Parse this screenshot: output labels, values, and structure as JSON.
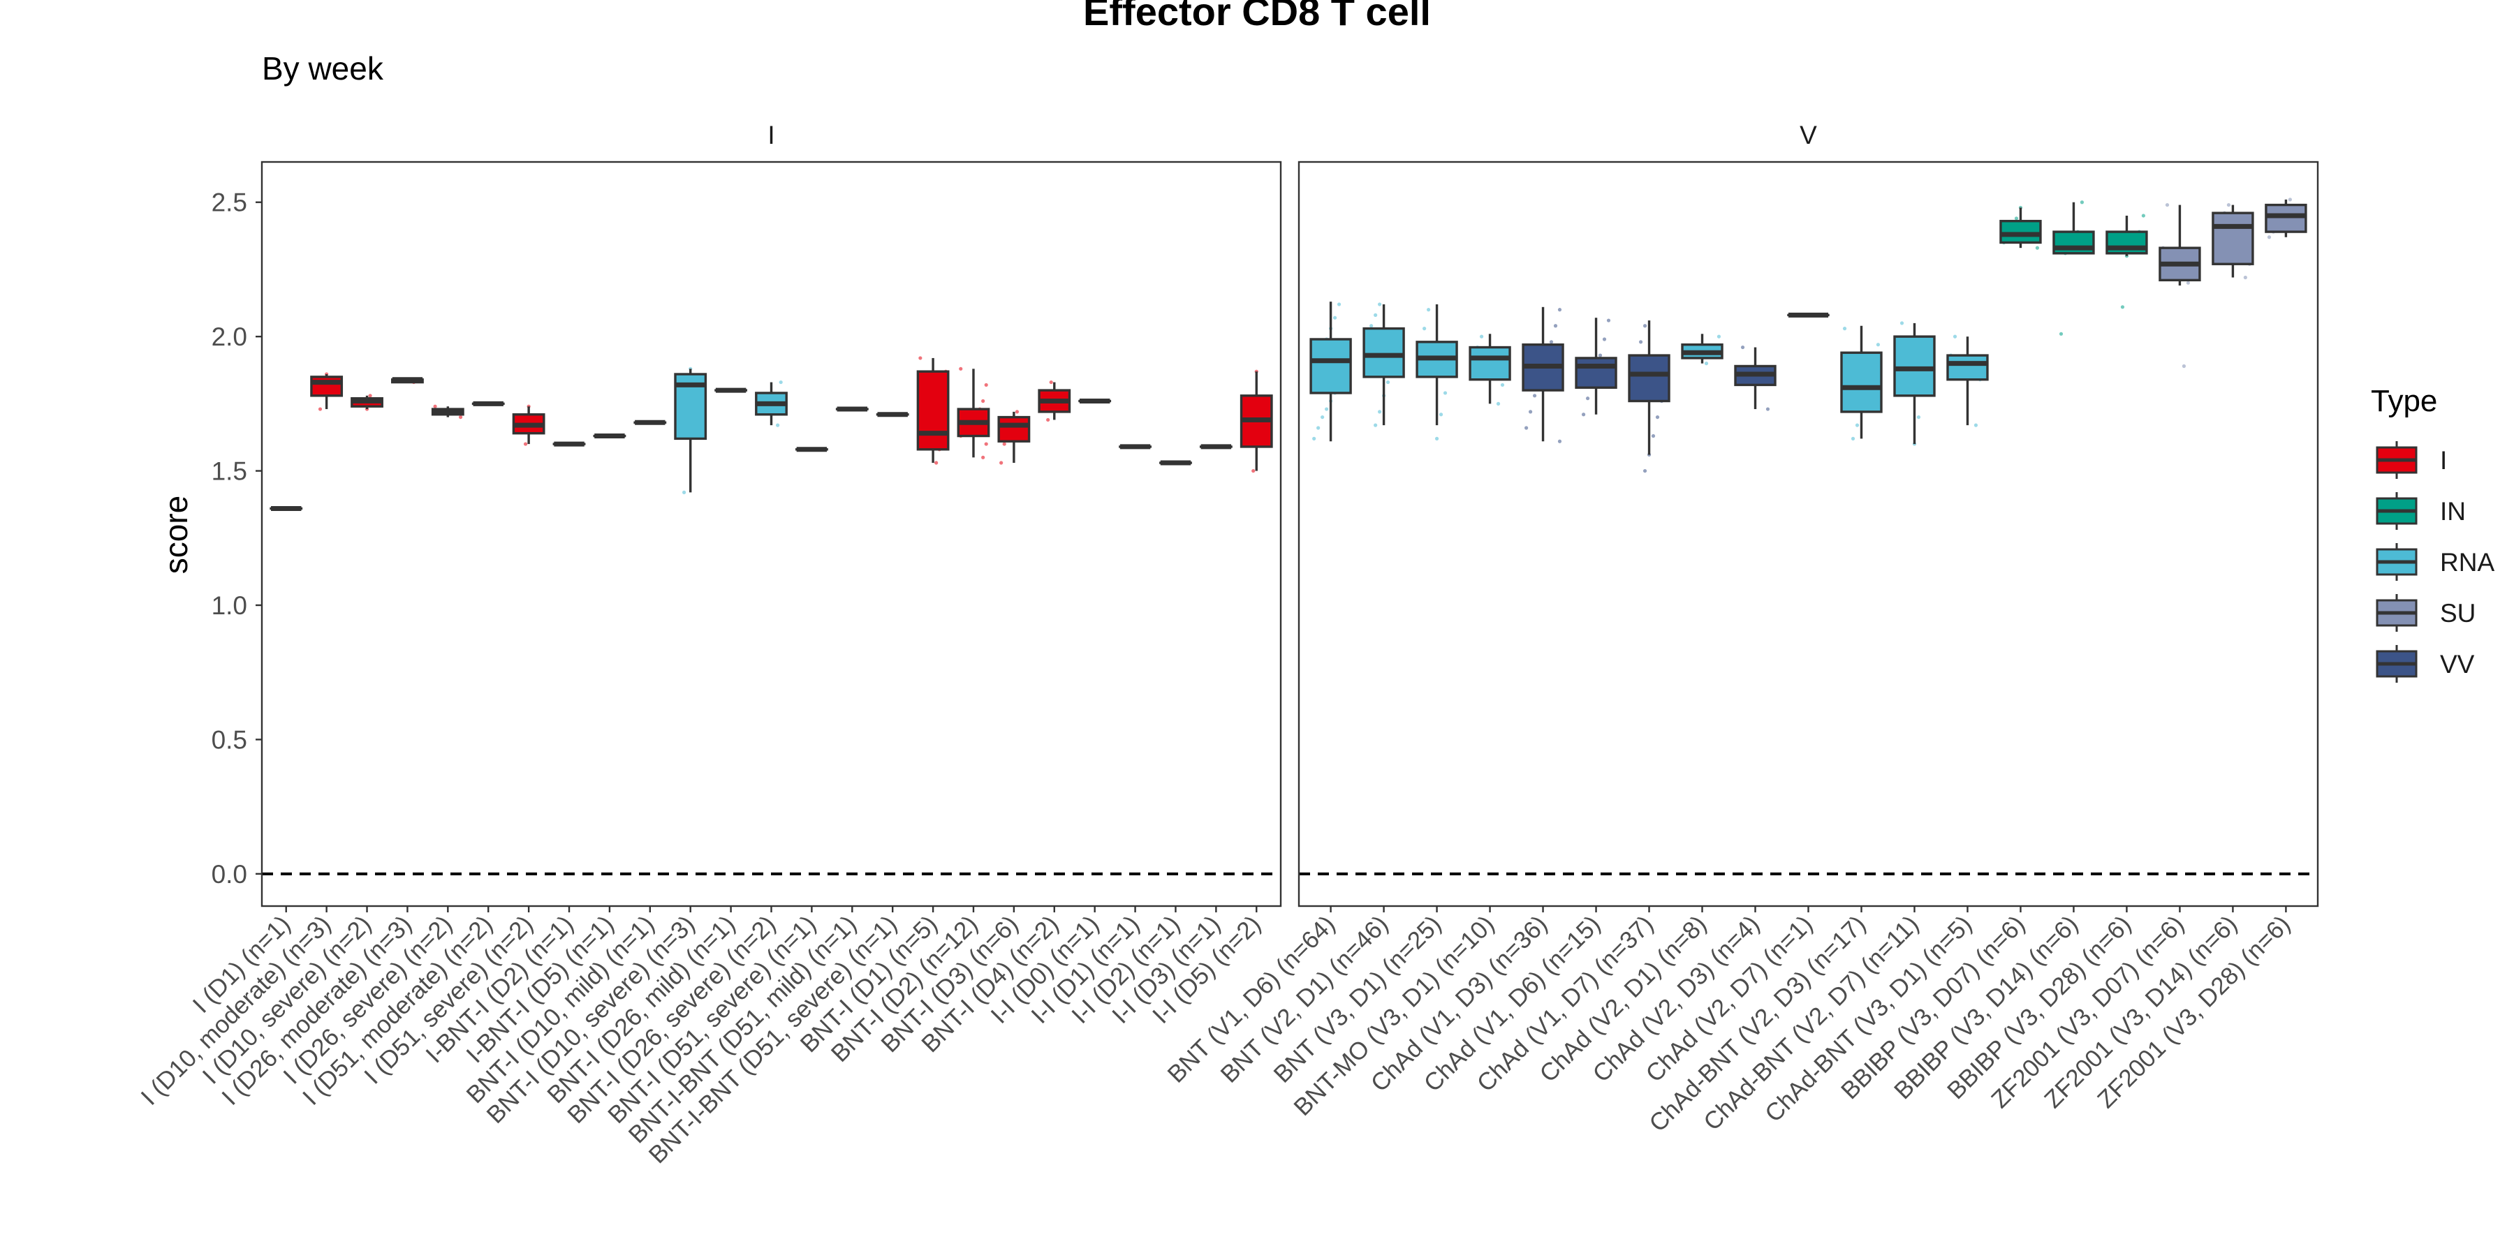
{
  "chart_data": {
    "type": "box",
    "title": "Effector CD8 T cell",
    "subtitle": "By week",
    "ylabel": "score",
    "xlabel": "",
    "ylim": [
      -0.12,
      2.65
    ],
    "yticks": [
      0.0,
      0.5,
      1.0,
      1.5,
      2.0,
      2.5
    ],
    "ytick_labels": [
      "0.0",
      "0.5",
      "1.0",
      "1.5",
      "2.0",
      "2.5"
    ],
    "reference_line": 0.0,
    "grid": false,
    "legend": {
      "title": "Type",
      "placement": "right",
      "entries": [
        {
          "name": "I",
          "color": "#E3000F"
        },
        {
          "name": "IN",
          "color": "#00A087"
        },
        {
          "name": "RNA",
          "color": "#4DBBD5"
        },
        {
          "name": "SU",
          "color": "#8491B4"
        },
        {
          "name": "VV",
          "color": "#3C5488"
        }
      ]
    },
    "panels": [
      {
        "strip": "I",
        "boxes": [
          {
            "label": "I (D1) (n=1)",
            "type": "I",
            "min": 1.36,
            "q1": 1.36,
            "median": 1.36,
            "q3": 1.36,
            "max": 1.36,
            "points": []
          },
          {
            "label": "I (D10, moderate) (n=3)",
            "type": "I",
            "min": 1.73,
            "q1": 1.78,
            "median": 1.83,
            "q3": 1.85,
            "max": 1.86,
            "points": [
              1.73,
              1.83,
              1.86
            ]
          },
          {
            "label": "I (D10, severe) (n=2)",
            "type": "I",
            "min": 1.73,
            "q1": 1.74,
            "median": 1.76,
            "q3": 1.77,
            "max": 1.78,
            "points": [
              1.73,
              1.78
            ]
          },
          {
            "label": "I (D26, moderate) (n=3)",
            "type": "I",
            "min": 1.83,
            "q1": 1.83,
            "median": 1.84,
            "q3": 1.84,
            "max": 1.84,
            "points": [
              1.83,
              1.84,
              1.84
            ]
          },
          {
            "label": "I (D26, severe) (n=2)",
            "type": "I",
            "min": 1.7,
            "q1": 1.71,
            "median": 1.72,
            "q3": 1.73,
            "max": 1.74,
            "points": [
              1.7,
              1.74
            ]
          },
          {
            "label": "I (D51, moderate) (n=2)",
            "type": "I",
            "min": 1.75,
            "q1": 1.75,
            "median": 1.75,
            "q3": 1.75,
            "max": 1.75,
            "points": [
              1.75,
              1.75
            ]
          },
          {
            "label": "I (D51, severe) (n=2)",
            "type": "I",
            "min": 1.6,
            "q1": 1.64,
            "median": 1.67,
            "q3": 1.71,
            "max": 1.74,
            "points": [
              1.6,
              1.74
            ]
          },
          {
            "label": "I-BNT-I (D2) (n=1)",
            "type": "I",
            "min": 1.6,
            "q1": 1.6,
            "median": 1.6,
            "q3": 1.6,
            "max": 1.6,
            "points": []
          },
          {
            "label": "I-BNT-I (D5) (n=1)",
            "type": "I",
            "min": 1.63,
            "q1": 1.63,
            "median": 1.63,
            "q3": 1.63,
            "max": 1.63,
            "points": []
          },
          {
            "label": "BNT-I (D10, mild) (n=1)",
            "type": "RNA",
            "min": 1.68,
            "q1": 1.68,
            "median": 1.68,
            "q3": 1.68,
            "max": 1.68,
            "points": []
          },
          {
            "label": "BNT-I (D10, severe) (n=3)",
            "type": "RNA",
            "min": 1.42,
            "q1": 1.62,
            "median": 1.82,
            "q3": 1.86,
            "max": 1.88,
            "points": [
              1.42,
              1.82,
              1.88
            ]
          },
          {
            "label": "BNT-I (D26, mild) (n=1)",
            "type": "RNA",
            "min": 1.8,
            "q1": 1.8,
            "median": 1.8,
            "q3": 1.8,
            "max": 1.8,
            "points": []
          },
          {
            "label": "BNT-I (D26, severe) (n=2)",
            "type": "RNA",
            "min": 1.67,
            "q1": 1.71,
            "median": 1.75,
            "q3": 1.79,
            "max": 1.83,
            "points": [
              1.67,
              1.83
            ]
          },
          {
            "label": "BNT-I (D51, severe) (n=1)",
            "type": "RNA",
            "min": 1.58,
            "q1": 1.58,
            "median": 1.58,
            "q3": 1.58,
            "max": 1.58,
            "points": []
          },
          {
            "label": "BNT-I-BNT (D51, mild) (n=1)",
            "type": "RNA",
            "min": 1.73,
            "q1": 1.73,
            "median": 1.73,
            "q3": 1.73,
            "max": 1.73,
            "points": []
          },
          {
            "label": "BNT-I-BNT (D51, severe) (n=1)",
            "type": "RNA",
            "min": 1.71,
            "q1": 1.71,
            "median": 1.71,
            "q3": 1.71,
            "max": 1.71,
            "points": []
          },
          {
            "label": "BNT-I (D1) (n=5)",
            "type": "I",
            "min": 1.53,
            "q1": 1.58,
            "median": 1.64,
            "q3": 1.87,
            "max": 1.92,
            "points": [
              1.53,
              1.58,
              1.64,
              1.87,
              1.92
            ]
          },
          {
            "label": "BNT-I (D2) (n=12)",
            "type": "I",
            "min": 1.55,
            "q1": 1.63,
            "median": 1.68,
            "q3": 1.73,
            "max": 1.88,
            "points": [
              1.55,
              1.6,
              1.63,
              1.65,
              1.67,
              1.68,
              1.69,
              1.71,
              1.73,
              1.76,
              1.82,
              1.88
            ]
          },
          {
            "label": "BNT-I (D3) (n=6)",
            "type": "I",
            "min": 1.53,
            "q1": 1.61,
            "median": 1.67,
            "q3": 1.7,
            "max": 1.72,
            "points": [
              1.53,
              1.6,
              1.66,
              1.68,
              1.7,
              1.72
            ]
          },
          {
            "label": "BNT-I (D4) (n=2)",
            "type": "I",
            "min": 1.69,
            "q1": 1.72,
            "median": 1.76,
            "q3": 1.8,
            "max": 1.83,
            "points": [
              1.69,
              1.83
            ]
          },
          {
            "label": "I-I (D0) (n=1)",
            "type": "I",
            "min": 1.76,
            "q1": 1.76,
            "median": 1.76,
            "q3": 1.76,
            "max": 1.76,
            "points": []
          },
          {
            "label": "I-I (D1) (n=1)",
            "type": "I",
            "min": 1.59,
            "q1": 1.59,
            "median": 1.59,
            "q3": 1.59,
            "max": 1.59,
            "points": []
          },
          {
            "label": "I-I (D2) (n=1)",
            "type": "I",
            "min": 1.53,
            "q1": 1.53,
            "median": 1.53,
            "q3": 1.53,
            "max": 1.53,
            "points": []
          },
          {
            "label": "I-I (D3) (n=1)",
            "type": "I",
            "min": 1.59,
            "q1": 1.59,
            "median": 1.59,
            "q3": 1.59,
            "max": 1.59,
            "points": []
          },
          {
            "label": "I-I (D5) (n=2)",
            "type": "I",
            "min": 1.5,
            "q1": 1.59,
            "median": 1.69,
            "q3": 1.78,
            "max": 1.87,
            "points": [
              1.5,
              1.87
            ]
          }
        ]
      },
      {
        "strip": "V",
        "boxes": [
          {
            "label": "BNT (V1, D6) (n=64)",
            "type": "RNA",
            "min": 1.61,
            "q1": 1.79,
            "median": 1.91,
            "q3": 1.99,
            "max": 2.13,
            "points": [
              1.62,
              1.66,
              1.7,
              1.73,
              1.76,
              1.79,
              1.81,
              1.84,
              1.87,
              1.9,
              1.93,
              1.96,
              1.99,
              2.03,
              2.07,
              2.12
            ]
          },
          {
            "label": "BNT (V2, D1) (n=46)",
            "type": "RNA",
            "min": 1.67,
            "q1": 1.85,
            "median": 1.93,
            "q3": 2.03,
            "max": 2.12,
            "points": [
              1.67,
              1.72,
              1.78,
              1.83,
              1.87,
              1.91,
              1.95,
              1.99,
              2.04,
              2.08,
              2.12
            ]
          },
          {
            "label": "BNT (V3, D1) (n=25)",
            "type": "RNA",
            "min": 1.67,
            "q1": 1.85,
            "median": 1.92,
            "q3": 1.98,
            "max": 2.12,
            "points": [
              1.62,
              1.71,
              1.79,
              1.86,
              1.92,
              1.97,
              2.03,
              2.1
            ]
          },
          {
            "label": "BNT-MO (V3, D1) (n=10)",
            "type": "RNA",
            "min": 1.75,
            "q1": 1.84,
            "median": 1.92,
            "q3": 1.96,
            "max": 2.01,
            "points": [
              1.75,
              1.82,
              1.88,
              1.93,
              1.96,
              2.0
            ]
          },
          {
            "label": "ChAd (V1, D3) (n=36)",
            "type": "VV",
            "min": 1.61,
            "q1": 1.8,
            "median": 1.89,
            "q3": 1.97,
            "max": 2.11,
            "points": [
              1.61,
              1.66,
              1.72,
              1.78,
              1.83,
              1.88,
              1.93,
              1.98,
              2.04,
              2.1
            ]
          },
          {
            "label": "ChAd (V1, D6) (n=15)",
            "type": "VV",
            "min": 1.71,
            "q1": 1.81,
            "median": 1.89,
            "q3": 1.92,
            "max": 2.07,
            "points": [
              1.71,
              1.77,
              1.83,
              1.88,
              1.93,
              1.99,
              2.06
            ]
          },
          {
            "label": "ChAd (V1, D7) (n=37)",
            "type": "VV",
            "min": 1.56,
            "q1": 1.76,
            "median": 1.86,
            "q3": 1.93,
            "max": 2.06,
            "points": [
              1.5,
              1.56,
              1.63,
              1.7,
              1.76,
              1.82,
              1.87,
              1.92,
              1.98,
              2.04
            ]
          },
          {
            "label": "ChAd (V2, D1) (n=8)",
            "type": "RNA",
            "min": 1.9,
            "q1": 1.92,
            "median": 1.94,
            "q3": 1.97,
            "max": 2.01,
            "points": [
              1.9,
              1.93,
              1.96,
              2.0
            ]
          },
          {
            "label": "ChAd (V2, D3) (n=4)",
            "type": "VV",
            "min": 1.73,
            "q1": 1.82,
            "median": 1.86,
            "q3": 1.89,
            "max": 1.96,
            "points": [
              1.73,
              1.84,
              1.88,
              1.96
            ]
          },
          {
            "label": "ChAd (V2, D7) (n=1)",
            "type": "VV",
            "min": 2.08,
            "q1": 2.08,
            "median": 2.08,
            "q3": 2.08,
            "max": 2.08,
            "points": []
          },
          {
            "label": "ChAd-BNT (V2, D3) (n=17)",
            "type": "RNA",
            "min": 1.62,
            "q1": 1.72,
            "median": 1.81,
            "q3": 1.94,
            "max": 2.04,
            "points": [
              1.62,
              1.67,
              1.73,
              1.79,
              1.85,
              1.91,
              1.97,
              2.03
            ]
          },
          {
            "label": "ChAd-BNT (V2, D7) (n=11)",
            "type": "RNA",
            "min": 1.6,
            "q1": 1.78,
            "median": 1.88,
            "q3": 2.0,
            "max": 2.05,
            "points": [
              1.6,
              1.7,
              1.79,
              1.86,
              1.93,
              1.99,
              2.05
            ]
          },
          {
            "label": "ChAd-BNT (V3, D1) (n=5)",
            "type": "RNA",
            "min": 1.67,
            "q1": 1.84,
            "median": 1.9,
            "q3": 1.93,
            "max": 2.0,
            "points": [
              1.67,
              1.84,
              1.9,
              1.93,
              2.0
            ]
          },
          {
            "label": "BBIBP (V3, D07) (n=6)",
            "type": "IN",
            "min": 2.33,
            "q1": 2.35,
            "median": 2.38,
            "q3": 2.43,
            "max": 2.48,
            "points": [
              2.33,
              2.35,
              2.37,
              2.4,
              2.44,
              2.48
            ]
          },
          {
            "label": "BBIBP (V3, D14) (n=6)",
            "type": "IN",
            "min": 2.31,
            "q1": 2.31,
            "median": 2.33,
            "q3": 2.39,
            "max": 2.5,
            "points": [
              2.01,
              2.31,
              2.32,
              2.34,
              2.39,
              2.5
            ]
          },
          {
            "label": "BBIBP (V3, D28) (n=6)",
            "type": "IN",
            "min": 2.3,
            "q1": 2.31,
            "median": 2.33,
            "q3": 2.39,
            "max": 2.45,
            "points": [
              2.11,
              2.3,
              2.32,
              2.35,
              2.39,
              2.45
            ]
          },
          {
            "label": "ZF2001 (V3, D07) (n=6)",
            "type": "SU",
            "min": 2.19,
            "q1": 2.21,
            "median": 2.27,
            "q3": 2.33,
            "max": 2.49,
            "points": [
              1.89,
              2.2,
              2.25,
              2.29,
              2.33,
              2.49
            ]
          },
          {
            "label": "ZF2001 (V3, D14) (n=6)",
            "type": "SU",
            "min": 2.22,
            "q1": 2.27,
            "median": 2.41,
            "q3": 2.46,
            "max": 2.49,
            "points": [
              2.22,
              2.27,
              2.38,
              2.43,
              2.46,
              2.49
            ]
          },
          {
            "label": "ZF2001 (V3, D28) (n=6)",
            "type": "SU",
            "min": 2.37,
            "q1": 2.39,
            "median": 2.45,
            "q3": 2.49,
            "max": 2.51,
            "points": [
              2.37,
              2.39,
              2.44,
              2.47,
              2.49,
              2.51
            ]
          }
        ]
      }
    ]
  }
}
